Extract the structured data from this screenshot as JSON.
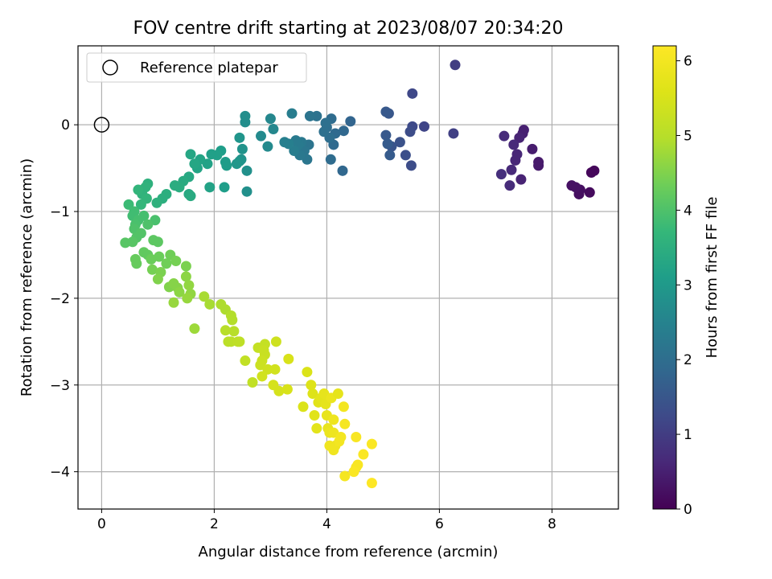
{
  "chart_data": {
    "type": "scatter",
    "title": "FOV centre drift starting at 2023/08/07 20:34:20",
    "xlabel": "Angular distance from reference (arcmin)",
    "ylabel": "Rotation from reference (arcmin)",
    "xlim": [
      -0.42,
      9.18
    ],
    "ylim": [
      -4.43,
      0.91
    ],
    "xticks": [
      0,
      2,
      4,
      6,
      8
    ],
    "yticks": [
      0,
      -1,
      -2,
      -3,
      -4
    ],
    "grid": true,
    "legend": {
      "placement": "top-left",
      "entries": [
        {
          "label": "Reference platepar",
          "marker": "open-circle"
        }
      ]
    },
    "reference_point": {
      "x": 0,
      "y": 0
    },
    "colorbar": {
      "label": "Hours from first FF file",
      "colormap": "viridis",
      "range": [
        0,
        6.2
      ],
      "ticks": [
        0,
        1,
        2,
        3,
        4,
        5,
        6
      ]
    },
    "series": [
      {
        "points": [
          [
            8.75,
            -0.53,
            0.1
          ],
          [
            8.7,
            -0.55,
            0.1
          ],
          [
            8.67,
            -0.78,
            0.15
          ],
          [
            8.5,
            -0.75,
            0.2
          ],
          [
            8.48,
            -0.8,
            0.2
          ],
          [
            8.42,
            -0.72,
            0.25
          ],
          [
            8.35,
            -0.7,
            0.25
          ],
          [
            7.76,
            -0.47,
            0.4
          ],
          [
            7.76,
            -0.43,
            0.4
          ],
          [
            7.65,
            -0.28,
            0.45
          ],
          [
            7.5,
            -0.06,
            0.5
          ],
          [
            7.48,
            -0.1,
            0.5
          ],
          [
            7.45,
            -0.63,
            0.55
          ],
          [
            7.42,
            -0.15,
            0.55
          ],
          [
            7.38,
            -0.34,
            0.6
          ],
          [
            7.35,
            -0.41,
            0.6
          ],
          [
            7.32,
            -0.23,
            0.65
          ],
          [
            7.28,
            -0.52,
            0.65
          ],
          [
            7.25,
            -0.7,
            0.7
          ],
          [
            7.15,
            -0.13,
            0.7
          ],
          [
            7.1,
            -0.57,
            0.75
          ],
          [
            6.28,
            0.69,
            1.0
          ],
          [
            6.25,
            -0.1,
            1.05
          ],
          [
            5.73,
            -0.02,
            1.15
          ],
          [
            5.52,
            0.36,
            1.2
          ],
          [
            5.52,
            -0.02,
            1.25
          ],
          [
            5.48,
            -0.08,
            1.3
          ],
          [
            5.5,
            -0.47,
            1.3
          ],
          [
            5.4,
            -0.35,
            1.35
          ],
          [
            5.3,
            -0.2,
            1.4
          ],
          [
            5.15,
            -0.25,
            1.45
          ],
          [
            5.1,
            0.13,
            1.5
          ],
          [
            5.05,
            0.15,
            1.55
          ],
          [
            5.05,
            -0.12,
            1.55
          ],
          [
            5.08,
            -0.22,
            1.6
          ],
          [
            5.12,
            -0.35,
            1.6
          ],
          [
            4.42,
            0.04,
            1.8
          ],
          [
            4.3,
            -0.07,
            1.85
          ],
          [
            4.28,
            -0.53,
            1.85
          ],
          [
            4.15,
            -0.1,
            1.9
          ],
          [
            4.12,
            -0.23,
            1.9
          ],
          [
            4.08,
            0.07,
            1.95
          ],
          [
            4.07,
            -0.4,
            1.95
          ],
          [
            4.05,
            -0.15,
            2.0
          ],
          [
            4.0,
            -0.03,
            2.0
          ],
          [
            3.98,
            0.02,
            2.05
          ],
          [
            3.95,
            -0.08,
            2.05
          ],
          [
            3.82,
            0.1,
            2.1
          ],
          [
            3.7,
            0.1,
            2.15
          ],
          [
            3.68,
            -0.23,
            2.15
          ],
          [
            3.65,
            -0.4,
            2.2
          ],
          [
            3.6,
            -0.3,
            2.2
          ],
          [
            3.55,
            -0.2,
            2.25
          ],
          [
            3.52,
            -0.35,
            2.25
          ],
          [
            3.5,
            -0.23,
            2.3
          ],
          [
            3.45,
            -0.18,
            2.3
          ],
          [
            3.42,
            -0.3,
            2.35
          ],
          [
            3.38,
            0.13,
            2.35
          ],
          [
            3.32,
            -0.22,
            2.4
          ],
          [
            3.25,
            -0.2,
            2.4
          ],
          [
            3.05,
            -0.05,
            2.6
          ],
          [
            3.0,
            0.07,
            2.6
          ],
          [
            2.95,
            -0.25,
            2.65
          ],
          [
            2.83,
            -0.13,
            2.65
          ],
          [
            2.55,
            0.1,
            2.75
          ],
          [
            2.55,
            0.03,
            2.75
          ],
          [
            2.58,
            -0.53,
            2.8
          ],
          [
            2.58,
            -0.77,
            2.8
          ],
          [
            2.5,
            -0.28,
            2.85
          ],
          [
            2.48,
            -0.4,
            2.85
          ],
          [
            2.45,
            -0.15,
            2.9
          ],
          [
            2.45,
            -0.42,
            2.9
          ],
          [
            2.4,
            -0.45,
            2.95
          ],
          [
            2.22,
            -0.47,
            3.05
          ],
          [
            2.2,
            -0.43,
            3.05
          ],
          [
            2.18,
            -0.72,
            3.1
          ],
          [
            2.12,
            -0.3,
            3.1
          ],
          [
            2.05,
            -0.35,
            3.15
          ],
          [
            1.95,
            -0.34,
            3.15
          ],
          [
            1.92,
            -0.72,
            3.2
          ],
          [
            1.88,
            -0.45,
            3.2
          ],
          [
            1.75,
            -0.4,
            3.25
          ],
          [
            1.7,
            -0.5,
            3.25
          ],
          [
            1.65,
            -0.45,
            3.3
          ],
          [
            1.58,
            -0.34,
            3.3
          ],
          [
            1.55,
            -0.6,
            3.35
          ],
          [
            1.55,
            -0.8,
            3.35
          ],
          [
            1.58,
            -0.82,
            3.4
          ],
          [
            1.45,
            -0.65,
            3.4
          ],
          [
            1.38,
            -0.72,
            3.45
          ],
          [
            1.3,
            -0.7,
            3.45
          ],
          [
            1.15,
            -0.8,
            3.5
          ],
          [
            1.08,
            -0.85,
            3.5
          ],
          [
            0.98,
            -0.9,
            3.55
          ],
          [
            0.82,
            -0.68,
            3.55
          ],
          [
            0.78,
            -0.72,
            3.6
          ],
          [
            0.72,
            -0.8,
            3.6
          ],
          [
            0.8,
            -0.85,
            3.65
          ],
          [
            0.65,
            -0.75,
            3.65
          ],
          [
            0.7,
            -0.92,
            3.7
          ],
          [
            0.48,
            -0.92,
            3.8
          ],
          [
            0.58,
            -1.0,
            3.85
          ],
          [
            0.55,
            -1.05,
            3.85
          ],
          [
            0.75,
            -1.05,
            3.9
          ],
          [
            0.65,
            -1.1,
            3.9
          ],
          [
            0.6,
            -1.15,
            3.95
          ],
          [
            0.95,
            -1.1,
            3.95
          ],
          [
            0.82,
            -1.15,
            4.0
          ],
          [
            0.58,
            -1.2,
            4.0
          ],
          [
            0.7,
            -1.25,
            4.05
          ],
          [
            0.62,
            -1.3,
            4.05
          ],
          [
            0.42,
            -1.36,
            4.1
          ],
          [
            0.55,
            -1.35,
            4.1
          ],
          [
            0.92,
            -1.33,
            4.15
          ],
          [
            1.0,
            -1.35,
            4.15
          ],
          [
            0.75,
            -1.47,
            4.2
          ],
          [
            0.82,
            -1.5,
            4.2
          ],
          [
            0.6,
            -1.55,
            4.25
          ],
          [
            0.62,
            -1.6,
            4.25
          ],
          [
            0.88,
            -1.55,
            4.3
          ],
          [
            1.02,
            -1.52,
            4.3
          ],
          [
            1.22,
            -1.5,
            4.35
          ],
          [
            1.15,
            -1.6,
            4.35
          ],
          [
            1.32,
            -1.57,
            4.4
          ],
          [
            0.9,
            -1.67,
            4.4
          ],
          [
            1.05,
            -1.7,
            4.45
          ],
          [
            1.5,
            -1.63,
            4.45
          ],
          [
            1.0,
            -1.78,
            4.5
          ],
          [
            1.2,
            -1.87,
            4.5
          ],
          [
            1.28,
            -1.83,
            4.55
          ],
          [
            1.35,
            -1.88,
            4.55
          ],
          [
            1.38,
            -1.93,
            4.6
          ],
          [
            1.5,
            -1.75,
            4.6
          ],
          [
            1.55,
            -1.85,
            4.65
          ],
          [
            1.58,
            -1.95,
            4.65
          ],
          [
            1.52,
            -2.0,
            4.7
          ],
          [
            1.28,
            -2.05,
            4.7
          ],
          [
            1.65,
            -2.35,
            4.75
          ],
          [
            1.82,
            -1.98,
            4.85
          ],
          [
            1.92,
            -2.07,
            4.85
          ],
          [
            2.12,
            -2.07,
            4.9
          ],
          [
            2.2,
            -2.13,
            4.9
          ],
          [
            2.3,
            -2.2,
            4.95
          ],
          [
            2.32,
            -2.25,
            4.95
          ],
          [
            2.2,
            -2.37,
            5.0
          ],
          [
            2.35,
            -2.38,
            5.0
          ],
          [
            2.25,
            -2.5,
            5.05
          ],
          [
            2.3,
            -2.5,
            5.05
          ],
          [
            2.42,
            -2.5,
            5.1
          ],
          [
            2.45,
            -2.5,
            5.1
          ],
          [
            2.55,
            -2.72,
            5.15
          ],
          [
            2.68,
            -2.97,
            5.15
          ],
          [
            2.78,
            -2.57,
            5.2
          ],
          [
            2.9,
            -2.53,
            5.2
          ],
          [
            2.88,
            -2.6,
            5.25
          ],
          [
            2.9,
            -2.65,
            5.25
          ],
          [
            2.85,
            -2.72,
            5.3
          ],
          [
            2.82,
            -2.77,
            5.3
          ],
          [
            2.95,
            -2.82,
            5.35
          ],
          [
            3.1,
            -2.5,
            5.35
          ],
          [
            3.08,
            -2.82,
            5.4
          ],
          [
            2.85,
            -2.9,
            5.4
          ],
          [
            3.05,
            -3.0,
            5.45
          ],
          [
            3.15,
            -3.07,
            5.45
          ],
          [
            3.32,
            -2.7,
            5.5
          ],
          [
            3.3,
            -3.05,
            5.5
          ],
          [
            3.58,
            -3.25,
            5.55
          ],
          [
            3.65,
            -2.85,
            5.55
          ],
          [
            3.72,
            -3.0,
            5.6
          ],
          [
            3.75,
            -3.1,
            5.6
          ],
          [
            3.78,
            -3.35,
            5.65
          ],
          [
            3.85,
            -3.2,
            5.65
          ],
          [
            3.82,
            -3.5,
            5.7
          ],
          [
            3.9,
            -3.15,
            5.7
          ],
          [
            3.95,
            -3.1,
            5.75
          ],
          [
            3.98,
            -3.22,
            5.75
          ],
          [
            4.0,
            -3.35,
            5.8
          ],
          [
            4.02,
            -3.5,
            5.8
          ],
          [
            4.05,
            -3.55,
            5.85
          ],
          [
            4.08,
            -3.15,
            5.85
          ],
          [
            4.12,
            -3.4,
            5.9
          ],
          [
            4.12,
            -3.55,
            5.9
          ],
          [
            4.15,
            -3.7,
            5.9
          ],
          [
            4.05,
            -3.7,
            5.95
          ],
          [
            4.12,
            -3.75,
            5.95
          ],
          [
            4.22,
            -3.65,
            6.0
          ],
          [
            4.25,
            -3.6,
            6.0
          ],
          [
            4.3,
            -3.25,
            6.0
          ],
          [
            4.32,
            -3.45,
            6.05
          ],
          [
            4.32,
            -4.05,
            6.05
          ],
          [
            4.52,
            -3.6,
            6.1
          ],
          [
            4.55,
            -3.92,
            6.1
          ],
          [
            4.52,
            -3.95,
            6.1
          ],
          [
            4.48,
            -4.0,
            6.15
          ],
          [
            4.65,
            -3.8,
            6.15
          ],
          [
            4.8,
            -3.68,
            6.15
          ],
          [
            4.8,
            -4.13,
            6.2
          ],
          [
            4.2,
            -3.1,
            5.75
          ]
        ]
      }
    ]
  }
}
